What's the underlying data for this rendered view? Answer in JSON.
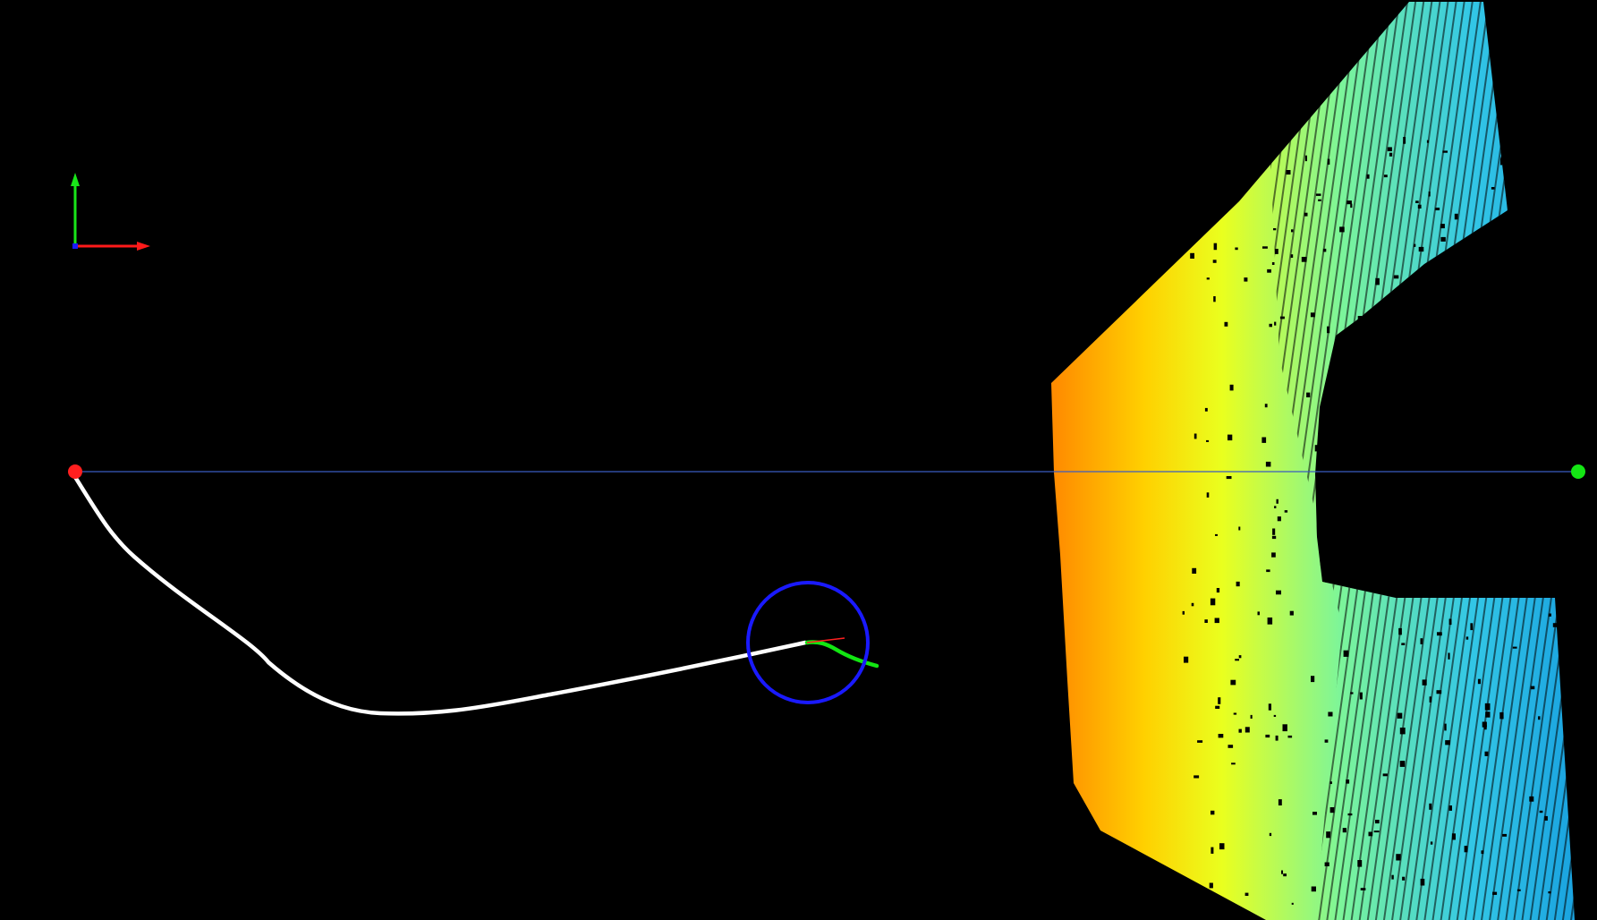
{
  "viewer": {
    "background_color": "#000000",
    "axes_gizmo": {
      "x_axis_color": "#ff1a1a",
      "y_axis_color": "#19e619",
      "z_axis_color": "#1a1aff"
    },
    "start_marker": {
      "color": "#ff1f1f"
    },
    "goal_marker": {
      "color": "#14e614"
    },
    "reference_line": {
      "color": "#3b5bbf"
    },
    "traversed_path": {
      "color": "#ffffff"
    },
    "planned_path": {
      "color": "#12e612"
    },
    "heading_indicator": {
      "color": "#ff2020"
    },
    "robot_footprint": {
      "shape": "circle",
      "color": "#1a1aff"
    },
    "point_cloud": {
      "colormap": "height",
      "color_stops": [
        "#ff8c00",
        "#ffd000",
        "#eaff1e",
        "#7cf59a",
        "#33c7e6",
        "#1aa3e0"
      ]
    }
  }
}
